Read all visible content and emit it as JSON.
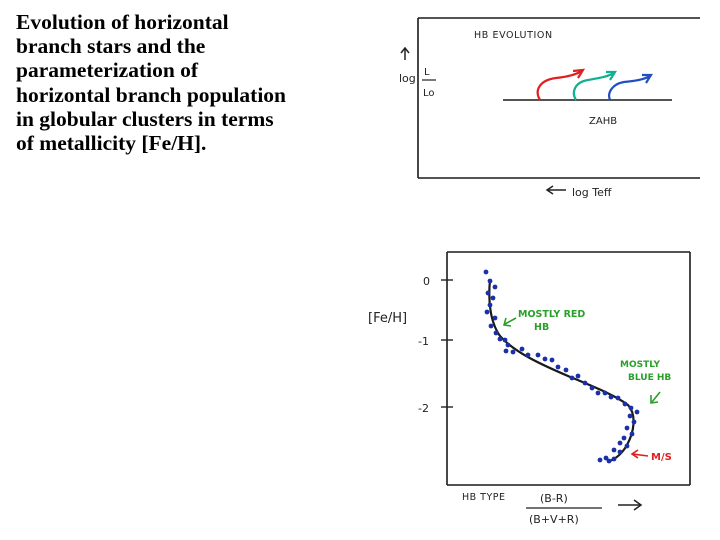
{
  "title_lines": [
    "Evolution of horizontal",
    "branch stars and the",
    "parameterization of",
    "horizontal branch population",
    "in globular clusters in terms",
    "of metallicity [Fe/H]."
  ],
  "hb_panel": {
    "heading": "HB EVOLUTION",
    "y_label_log": "log",
    "y_label_frac_top": "L",
    "y_label_frac_bottom": "Lo",
    "zahb_label": "ZAHB",
    "x_label": "log Teff",
    "tracks": [
      {
        "name": "red",
        "color": "#e02020"
      },
      {
        "name": "green",
        "color": "#10b090"
      },
      {
        "name": "blue",
        "color": "#2050c0"
      }
    ]
  },
  "metal_panel": {
    "y_label": "[Fe/H]",
    "y_ticks": [
      "0",
      "-1",
      "-2"
    ],
    "annotation_red_hb": [
      "MOSTLY RED",
      "HB"
    ],
    "annotation_blue_hb": [
      "MOSTLY",
      "BLUE HB"
    ],
    "annotation_ms": "M/S",
    "x_label_prefix": "HB TYPE",
    "x_label_numerator": "(B-R)",
    "x_label_denominator": "(B+V+R)",
    "annotation_color": "#2aa02a",
    "ms_color": "#e02020",
    "point_color": "#1a2fa8"
  }
}
